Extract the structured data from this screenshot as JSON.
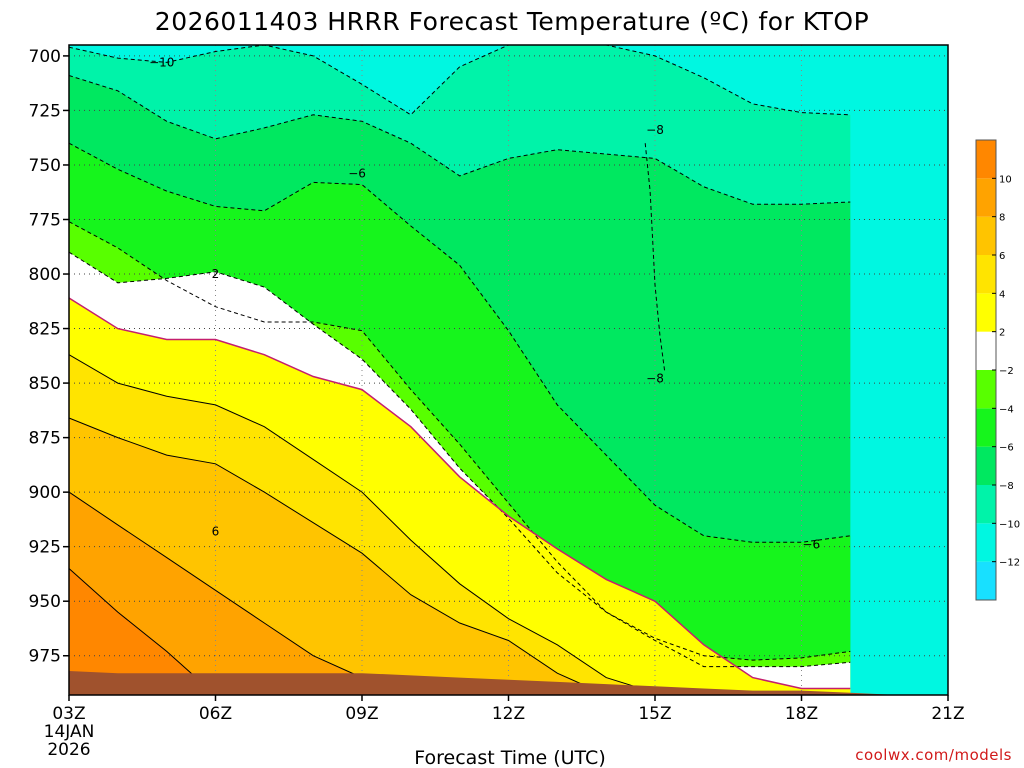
{
  "chart_data": {
    "type": "heatmap",
    "title": "2026011403 HRRR Forecast Temperature (ºC) for KTOP",
    "xlabel": "Forecast Time (UTC)",
    "ylabel": "",
    "x_ticks": [
      "03Z",
      "06Z",
      "09Z",
      "12Z",
      "15Z",
      "18Z",
      "21Z"
    ],
    "x_values": [
      3,
      6,
      9,
      12,
      15,
      18,
      21
    ],
    "start_date": [
      "14JAN",
      "2026"
    ],
    "y_ticks": [
      700,
      725,
      750,
      775,
      800,
      825,
      850,
      875,
      900,
      925,
      950,
      975
    ],
    "xlim": [
      3,
      21
    ],
    "ylim_hPa": [
      695,
      993
    ],
    "hours": [
      3,
      4,
      5,
      6,
      7,
      8,
      9,
      10,
      11,
      12,
      13,
      14,
      15,
      16,
      17,
      18,
      19,
      20,
      21
    ],
    "colorbar": {
      "levels": [
        -14,
        -12,
        -10,
        -8,
        -6,
        -4,
        -2,
        2,
        4,
        6,
        8,
        10,
        12
      ],
      "tick_labels": [
        "-12",
        "-10",
        "-8",
        "-6",
        "-4",
        "-2",
        "2",
        "4",
        "6",
        "8",
        "10"
      ],
      "colors": [
        "#18e0ff",
        "#00f7e1",
        "#00f3a9",
        "#00e860",
        "#16f51c",
        "#58ff00",
        "#ffffff",
        "#ffff00",
        "#ffe400",
        "#ffc400",
        "#ffa300",
        "#ff8700"
      ]
    },
    "contours": [
      {
        "value": -10,
        "pressure": [
          696,
          701,
          703,
          698,
          695,
          700,
          713,
          727,
          705,
          695,
          695,
          695,
          700,
          710,
          722,
          726,
          727
        ]
      },
      {
        "value": -8,
        "pressure": [
          709,
          716,
          730,
          738,
          733,
          727,
          730,
          740,
          755,
          747,
          743,
          745,
          747,
          760,
          768,
          768,
          767
        ]
      },
      {
        "value": -8,
        "label_note": "enclosed",
        "pressure": [
          740,
          762,
          805,
          828,
          845
        ]
      },
      {
        "value": -6,
        "pressure": [
          740,
          752,
          762,
          769,
          771,
          758,
          759,
          778,
          796,
          826,
          860,
          883,
          906,
          920,
          923,
          923,
          920
        ]
      },
      {
        "value": -4,
        "pressure": [
          776,
          788,
          803,
          815,
          822,
          822,
          826,
          853,
          878,
          905,
          932,
          955,
          967,
          975,
          977,
          976,
          973
        ]
      },
      {
        "value": -2,
        "pressure": [
          790,
          804,
          802,
          799,
          806,
          823,
          839,
          862,
          889,
          912,
          937,
          955,
          968,
          980,
          980,
          980,
          978
        ]
      },
      {
        "value": 2,
        "pressure": [
          811,
          825,
          830,
          830,
          837,
          847,
          853,
          870,
          893,
          911,
          926,
          940,
          950,
          970,
          985,
          990,
          990
        ]
      },
      {
        "value": 4,
        "pressure": [
          837,
          850,
          856,
          860,
          870,
          885,
          900,
          922,
          942,
          958,
          970,
          985,
          992
        ]
      },
      {
        "value": 6,
        "pressure": [
          866,
          875,
          883,
          887,
          900,
          914,
          928,
          947,
          960,
          968,
          983,
          993
        ]
      },
      {
        "value": 8,
        "pressure": [
          900,
          915,
          930,
          945,
          960,
          975,
          985,
          993
        ]
      },
      {
        "value": 10,
        "pressure": [
          935,
          955,
          973,
          993
        ]
      }
    ],
    "surface_pressure": [
      982,
      983,
      983,
      983,
      983,
      983,
      983,
      984,
      985,
      986,
      987,
      988,
      989,
      990,
      991,
      991,
      992,
      993,
      993
    ],
    "contour_labels": [
      {
        "text": "-10",
        "hour": 4.9,
        "pressure": 703
      },
      {
        "text": "-8",
        "hour": 15.0,
        "pressure": 734
      },
      {
        "text": "-8",
        "hour": 15.0,
        "pressure": 848
      },
      {
        "text": "-6",
        "hour": 8.9,
        "pressure": 754
      },
      {
        "text": "-6",
        "hour": 18.2,
        "pressure": 924
      },
      {
        "text": "2",
        "hour": 6.0,
        "pressure": 800
      },
      {
        "text": "6",
        "hour": 6.0,
        "pressure": 918
      }
    ]
  },
  "credit": "coolwx.com/models",
  "colors": {
    "ground": "#a0522d",
    "freezing_line": "#c41e6e",
    "contour": "#000000"
  }
}
